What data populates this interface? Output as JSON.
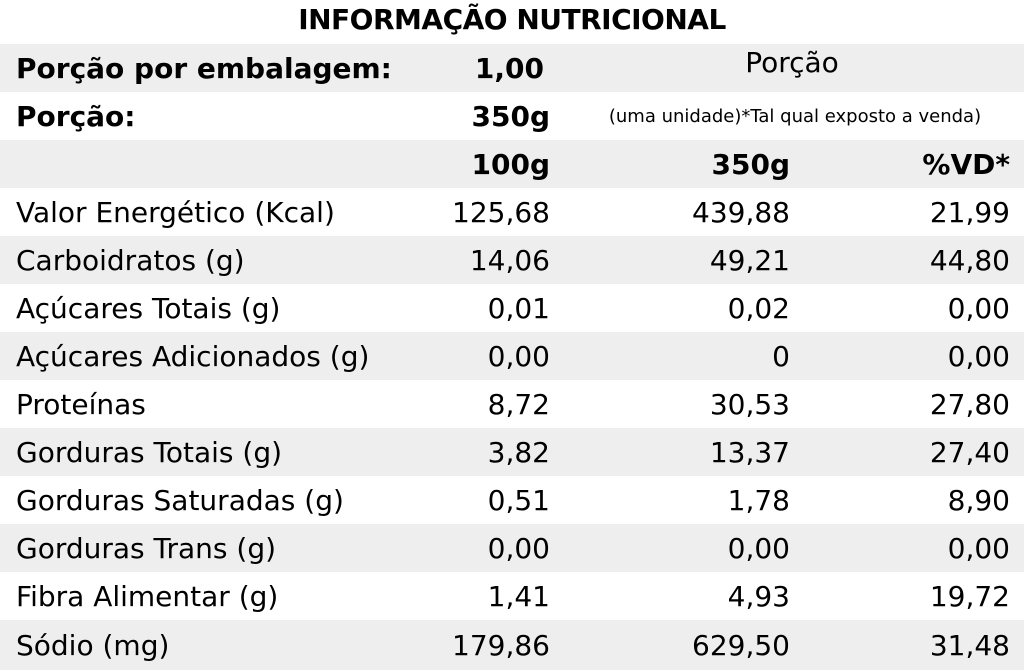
{
  "title": "INFORMAÇÃO NUTRICIONAL",
  "header": {
    "serving_per_package_label": "Porção por embalagem:",
    "serving_per_package_value": "1,00",
    "portion_heading": "Porção",
    "serving_label": "Porção:",
    "serving_value": "350g",
    "serving_note": "(uma unidade)*Tal qual exposto a venda)"
  },
  "columns": {
    "per100": "100g",
    "per350": "350g",
    "vd": "%VD*"
  },
  "rows": [
    {
      "label": "Valor Energético (Kcal)",
      "per100": "125,68",
      "per350": "439,88",
      "vd": "21,99"
    },
    {
      "label": "Carboidratos (g)",
      "per100": "14,06",
      "per350": "49,21",
      "vd": "44,80"
    },
    {
      "label": "Açúcares Totais (g)",
      "per100": "0,01",
      "per350": "0,02",
      "vd": "0,00"
    },
    {
      "label": "Açúcares Adicionados (g)",
      "per100": "0,00",
      "per350": "0",
      "vd": "0,00"
    },
    {
      "label": "Proteínas",
      "per100": "8,72",
      "per350": "30,53",
      "vd": "27,80"
    },
    {
      "label": "Gorduras Totais (g)",
      "per100": "3,82",
      "per350": "13,37",
      "vd": "27,40"
    },
    {
      "label": "Gorduras Saturadas (g)",
      "per100": "0,51",
      "per350": "1,78",
      "vd": "8,90"
    },
    {
      "label": "Gorduras Trans (g)",
      "per100": "0,00",
      "per350": "0,00",
      "vd": "0,00"
    },
    {
      "label": "Fibra Alimentar (g)",
      "per100": "1,41",
      "per350": "4,93",
      "vd": "19,72"
    },
    {
      "label": "Sódio (mg)",
      "per100": "179,86",
      "per350": "629,50",
      "vd": "31,48"
    }
  ],
  "colors": {
    "shade": "#eeeeee",
    "text": "#000000",
    "background": "#ffffff"
  }
}
